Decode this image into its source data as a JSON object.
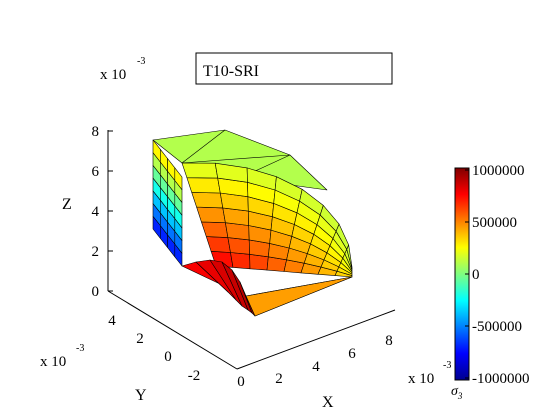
{
  "chart_data": {
    "type": "surface-3d",
    "title": "T10-SRI",
    "xlabel": "X",
    "ylabel": "Y",
    "zlabel": "Z",
    "x_ticks": [
      "0",
      "2",
      "4",
      "6",
      "8"
    ],
    "y_ticks": [
      "-2",
      "0",
      "2",
      "4"
    ],
    "z_ticks": [
      "0",
      "2",
      "4",
      "6",
      "8"
    ],
    "x_scale": "x 10",
    "y_scale": "x 10",
    "z_scale": "x 10",
    "scale_exponent": "-3",
    "xlim": [
      0,
      0.009
    ],
    "ylim": [
      -0.003,
      0.005
    ],
    "zlim": [
      0,
      0.009
    ],
    "colorbar": {
      "label": "σ",
      "label_subscript": "3",
      "range": [
        -1000000,
        1000000
      ],
      "ticks": [
        "1000000",
        "500000",
        "0",
        "-500000",
        "-1000000"
      ],
      "colormap": "jet"
    },
    "grid": false
  }
}
